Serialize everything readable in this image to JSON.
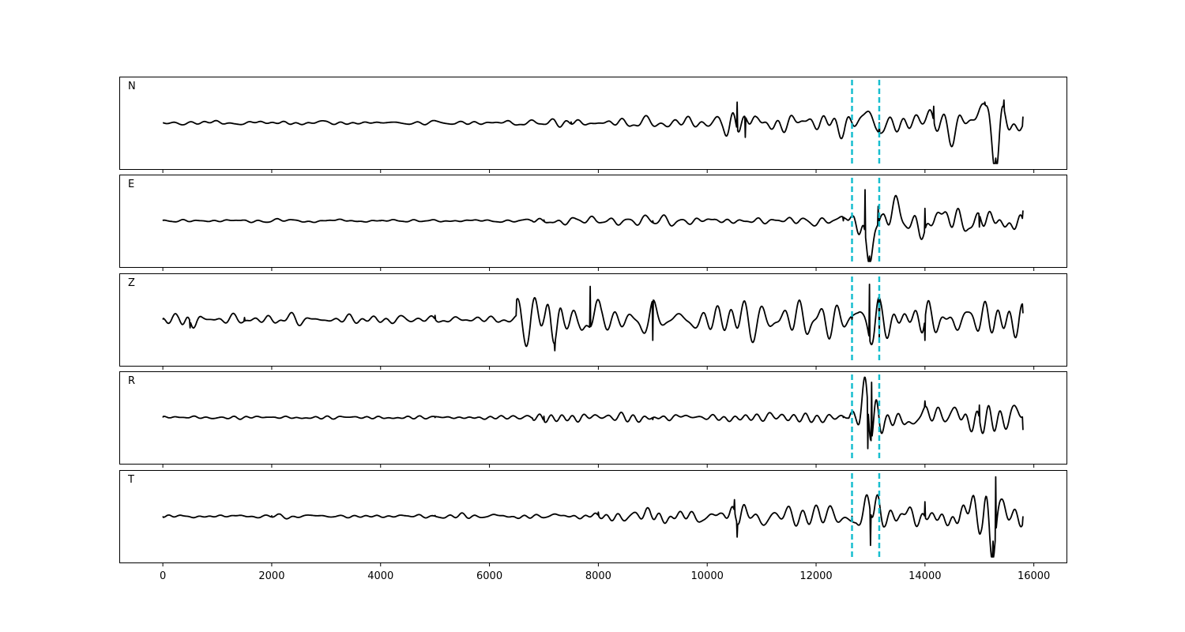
{
  "chart_data": {
    "type": "line",
    "layout": "stacked-panels",
    "shared_x": true,
    "xlim": [
      -800,
      16600
    ],
    "x_ticks": [
      0,
      2000,
      4000,
      6000,
      8000,
      10000,
      12000,
      14000,
      16000
    ],
    "x_tick_labels": [
      "0",
      "2000",
      "4000",
      "6000",
      "8000",
      "10000",
      "12000",
      "14000",
      "16000"
    ],
    "xlabel": "",
    "ylabel": "",
    "y_ticks_shown": false,
    "grid": false,
    "legend": "none",
    "line_color": "#000000",
    "marker_color": "#17becf",
    "markers_x": [
      12660,
      13160
    ],
    "markers_style": "dashed",
    "panels": [
      {
        "label": "N",
        "ylim": [
          -1,
          1
        ],
        "samples": [
          {
            "x": 0,
            "y": 0.0
          },
          {
            "x": 2000,
            "y": 0.01
          },
          {
            "x": 4000,
            "y": 0.0
          },
          {
            "x": 6000,
            "y": 0.01
          },
          {
            "x": 7500,
            "y": 0.02
          },
          {
            "x": 10550,
            "y": 0.5
          },
          {
            "x": 10700,
            "y": -0.35
          },
          {
            "x": 12660,
            "y": 0.0
          },
          {
            "x": 13160,
            "y": 0.0
          },
          {
            "x": 14160,
            "y": 0.4
          },
          {
            "x": 15100,
            "y": 0.5
          },
          {
            "x": 15300,
            "y": -0.85
          },
          {
            "x": 15450,
            "y": 0.55
          },
          {
            "x": 15800,
            "y": 0.15
          }
        ]
      },
      {
        "label": "E",
        "ylim": [
          -1,
          1
        ],
        "samples": [
          {
            "x": 0,
            "y": 0.0
          },
          {
            "x": 4000,
            "y": 0.0
          },
          {
            "x": 7000,
            "y": 0.02
          },
          {
            "x": 9000,
            "y": 0.0
          },
          {
            "x": 12500,
            "y": 0.0
          },
          {
            "x": 12900,
            "y": 0.75
          },
          {
            "x": 12980,
            "y": -0.85
          },
          {
            "x": 13140,
            "y": 0.35
          },
          {
            "x": 14000,
            "y": 0.3
          },
          {
            "x": 15000,
            "y": -0.15
          },
          {
            "x": 15800,
            "y": 0.25
          }
        ]
      },
      {
        "label": "Z",
        "ylim": [
          -1,
          1
        ],
        "samples": [
          {
            "x": 0,
            "y": 0.0
          },
          {
            "x": 500,
            "y": -0.2
          },
          {
            "x": 1500,
            "y": 0.05
          },
          {
            "x": 5000,
            "y": 0.1
          },
          {
            "x": 7200,
            "y": -0.75
          },
          {
            "x": 7850,
            "y": 0.8
          },
          {
            "x": 9000,
            "y": -0.5
          },
          {
            "x": 12660,
            "y": 0.0
          },
          {
            "x": 12980,
            "y": 0.85
          },
          {
            "x": 13160,
            "y": -0.45
          },
          {
            "x": 14000,
            "y": -0.5
          },
          {
            "x": 15800,
            "y": 0.15
          }
        ]
      },
      {
        "label": "R",
        "ylim": [
          -1,
          1
        ],
        "samples": [
          {
            "x": 0,
            "y": 0.0
          },
          {
            "x": 5000,
            "y": 0.0
          },
          {
            "x": 7000,
            "y": 0.03
          },
          {
            "x": 9000,
            "y": -0.05
          },
          {
            "x": 12500,
            "y": 0.0
          },
          {
            "x": 12950,
            "y": -0.75
          },
          {
            "x": 13020,
            "y": 0.85
          },
          {
            "x": 14000,
            "y": 0.4
          },
          {
            "x": 15000,
            "y": 0.3
          },
          {
            "x": 15800,
            "y": -0.3
          }
        ]
      },
      {
        "label": "T",
        "ylim": [
          -1,
          1
        ],
        "samples": [
          {
            "x": 0,
            "y": 0.0
          },
          {
            "x": 2000,
            "y": 0.01
          },
          {
            "x": 5000,
            "y": 0.02
          },
          {
            "x": 8000,
            "y": 0.1
          },
          {
            "x": 10500,
            "y": 0.4
          },
          {
            "x": 10550,
            "y": -0.5
          },
          {
            "x": 12660,
            "y": 0.0
          },
          {
            "x": 13000,
            "y": -0.7
          },
          {
            "x": 14000,
            "y": 0.35
          },
          {
            "x": 15300,
            "y": 0.95
          },
          {
            "x": 15250,
            "y": -0.6
          },
          {
            "x": 15800,
            "y": 0.0
          }
        ]
      }
    ]
  }
}
